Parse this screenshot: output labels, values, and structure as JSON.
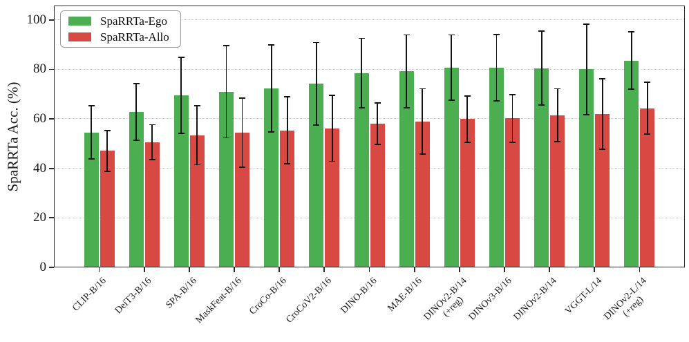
{
  "figure": {
    "ylabel": "SpaRRTa Acc. (%)"
  },
  "chart_data": {
    "type": "bar",
    "title": "",
    "xlabel": "",
    "ylabel": "SpaRRTa Acc. (%)",
    "categories": [
      "CLIP-B/16",
      "DeiT3-B/16",
      "SPA-B/16",
      "MaskFeat-B/16",
      "CroCo-B/16",
      "CroCoV2-B/16",
      "DINO-B/16",
      "MAE-B/16",
      "DINOv2-B/14\n(+reg)",
      "DINOv3-B/16",
      "DINOv2-B/14",
      "VGGT-L/14",
      "DINOv2-L/14\n(+reg)"
    ],
    "series": [
      {
        "name": "SpaRRTa-Ego",
        "color": "#4bae50",
        "values": [
          54.5,
          62.8,
          69.6,
          71.0,
          72.3,
          74.2,
          78.5,
          79.2,
          80.8,
          80.7,
          80.5,
          80.0,
          83.6
        ],
        "errors": [
          11.0,
          11.8,
          15.6,
          18.9,
          17.9,
          16.9,
          14.3,
          15.0,
          13.4,
          13.6,
          15.2,
          18.6,
          11.8
        ]
      },
      {
        "name": "SpaRRTa-Allo",
        "color": "#d84943",
        "values": [
          47.1,
          50.6,
          53.4,
          54.5,
          55.4,
          56.2,
          58.0,
          59.0,
          59.9,
          60.2,
          61.5,
          62.0,
          64.3
        ],
        "errors": [
          8.5,
          7.3,
          12.2,
          14.2,
          13.8,
          13.6,
          8.6,
          13.4,
          9.6,
          9.9,
          10.9,
          14.5,
          10.7
        ]
      }
    ],
    "error_bars": true,
    "error_color": "#141414",
    "yticks": [
      0,
      20,
      40,
      60,
      80,
      100
    ],
    "ylim": [
      0,
      105.8
    ],
    "grid": "horizontal-dotted",
    "legend_position": "upper-left"
  }
}
